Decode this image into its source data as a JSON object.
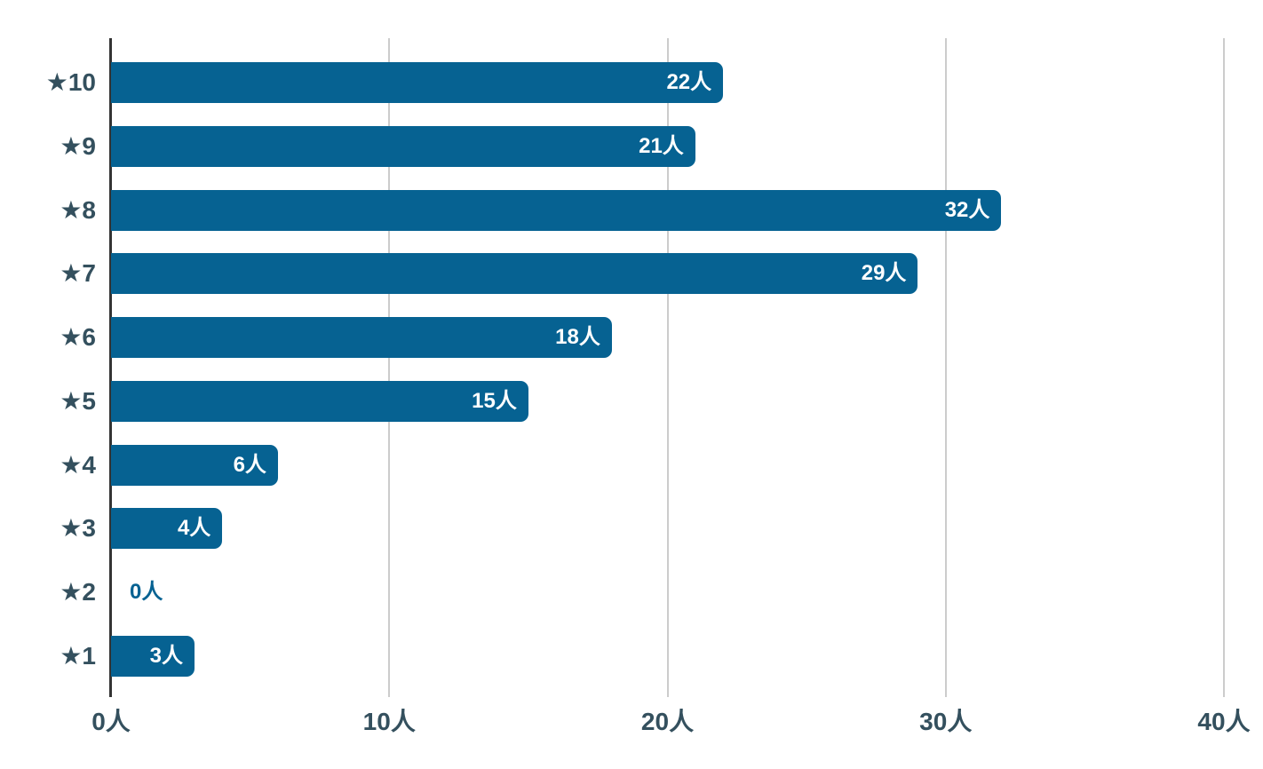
{
  "chart_data": {
    "type": "bar",
    "orientation": "horizontal",
    "title": "",
    "xlabel": "",
    "ylabel": "",
    "unit": "人",
    "categories": [
      "★10",
      "★9",
      "★8",
      "★7",
      "★6",
      "★5",
      "★4",
      "★3",
      "★2",
      "★1"
    ],
    "values": [
      22,
      21,
      32,
      29,
      18,
      15,
      6,
      4,
      0,
      3
    ],
    "value_labels": [
      "22人",
      "21人",
      "32人",
      "29人",
      "18人",
      "15人",
      "6人",
      "4人",
      "0人",
      "3人"
    ],
    "x_ticks": [
      {
        "value": 0,
        "label": "0人"
      },
      {
        "value": 10,
        "label": "10人"
      },
      {
        "value": 20,
        "label": "20人"
      },
      {
        "value": 30,
        "label": "30人"
      },
      {
        "value": 40,
        "label": "40人"
      }
    ],
    "xlim": [
      0,
      40
    ],
    "grid": true,
    "legend": "none",
    "colors": {
      "bar": "#066292",
      "value_label_inside": "#ffffff",
      "value_label_outside": "#066292",
      "axis_label": "#34505e",
      "axis_line": "#333333",
      "gridline": "#cccccc",
      "background": "#ffffff"
    }
  }
}
